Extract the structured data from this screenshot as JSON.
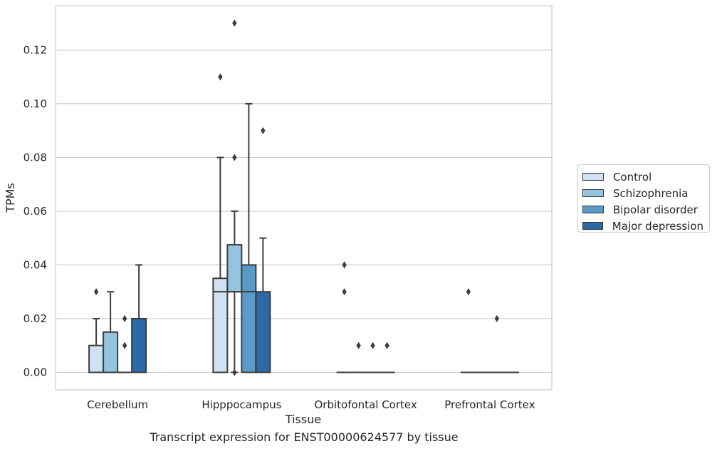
{
  "chart_data": {
    "type": "box",
    "title": "",
    "xlabel": "Tissue",
    "ylabel": "TPMs",
    "caption": "Transcript expression for ENST00000624577 by tissue",
    "ylim": [
      -0.0065,
      0.1365
    ],
    "yticks": [
      0.0,
      0.02,
      0.04,
      0.06,
      0.08,
      0.1,
      0.12
    ],
    "ytick_labels": [
      "0.00",
      "0.02",
      "0.04",
      "0.06",
      "0.08",
      "0.10",
      "0.12"
    ],
    "grid": true,
    "legend_position": "right",
    "categories": [
      "Cerebellum",
      "Hipppocampus",
      "Orbitofontal Cortex",
      "Prefrontal Cortex"
    ],
    "series": [
      {
        "name": "Control",
        "color": "#d0e1f2",
        "boxes": [
          {
            "q1": 0.0,
            "median": 0.0,
            "q3": 0.01,
            "whisker_low": 0.0,
            "whisker_high": 0.02,
            "outliers": [
              0.03
            ]
          },
          {
            "q1": 0.0,
            "median": 0.03,
            "q3": 0.035,
            "whisker_low": 0.0,
            "whisker_high": 0.08,
            "outliers": [
              0.11
            ]
          },
          {
            "q1": 0.0,
            "median": 0.0,
            "q3": 0.0,
            "whisker_low": 0.0,
            "whisker_high": 0.0,
            "outliers": [
              0.03,
              0.04
            ]
          },
          {
            "q1": 0.0,
            "median": 0.0,
            "q3": 0.0,
            "whisker_low": 0.0,
            "whisker_high": 0.0,
            "outliers": [
              0.03
            ]
          }
        ]
      },
      {
        "name": "Schizophrenia",
        "color": "#94c4df",
        "boxes": [
          {
            "q1": 0.0,
            "median": 0.0,
            "q3": 0.015,
            "whisker_low": 0.0,
            "whisker_high": 0.03,
            "outliers": []
          },
          {
            "q1": 0.03,
            "median": 0.03,
            "q3": 0.0475,
            "whisker_low": 0.0,
            "whisker_high": 0.06,
            "outliers": [
              0.0,
              0.08,
              0.13
            ]
          },
          {
            "q1": 0.0,
            "median": 0.0,
            "q3": 0.0,
            "whisker_low": 0.0,
            "whisker_high": 0.0,
            "outliers": [
              0.01
            ]
          },
          {
            "q1": 0.0,
            "median": 0.0,
            "q3": 0.0,
            "whisker_low": 0.0,
            "whisker_high": 0.0,
            "outliers": []
          }
        ]
      },
      {
        "name": "Bipolar disorder",
        "color": "#5b9ac6",
        "boxes": [
          {
            "q1": 0.0,
            "median": 0.0,
            "q3": 0.0,
            "whisker_low": 0.0,
            "whisker_high": 0.0,
            "outliers": [
              0.01,
              0.02
            ]
          },
          {
            "q1": 0.0,
            "median": 0.03,
            "q3": 0.04,
            "whisker_low": 0.0,
            "whisker_high": 0.1,
            "outliers": []
          },
          {
            "q1": 0.0,
            "median": 0.0,
            "q3": 0.0,
            "whisker_low": 0.0,
            "whisker_high": 0.0,
            "outliers": [
              0.01
            ]
          },
          {
            "q1": 0.0,
            "median": 0.0,
            "q3": 0.0,
            "whisker_low": 0.0,
            "whisker_high": 0.0,
            "outliers": [
              0.02
            ]
          }
        ]
      },
      {
        "name": "Major depression",
        "color": "#2b6aa6",
        "boxes": [
          {
            "q1": 0.0,
            "median": 0.0,
            "q3": 0.02,
            "whisker_low": 0.0,
            "whisker_high": 0.04,
            "outliers": []
          },
          {
            "q1": 0.0,
            "median": 0.0,
            "q3": 0.03,
            "whisker_low": 0.0,
            "whisker_high": 0.05,
            "outliers": [
              0.09
            ]
          },
          {
            "q1": 0.0,
            "median": 0.0,
            "q3": 0.0,
            "whisker_low": 0.0,
            "whisker_high": 0.0,
            "outliers": [
              0.01
            ]
          },
          {
            "q1": 0.0,
            "median": 0.0,
            "q3": 0.0,
            "whisker_low": 0.0,
            "whisker_high": 0.0,
            "outliers": []
          }
        ]
      }
    ]
  }
}
